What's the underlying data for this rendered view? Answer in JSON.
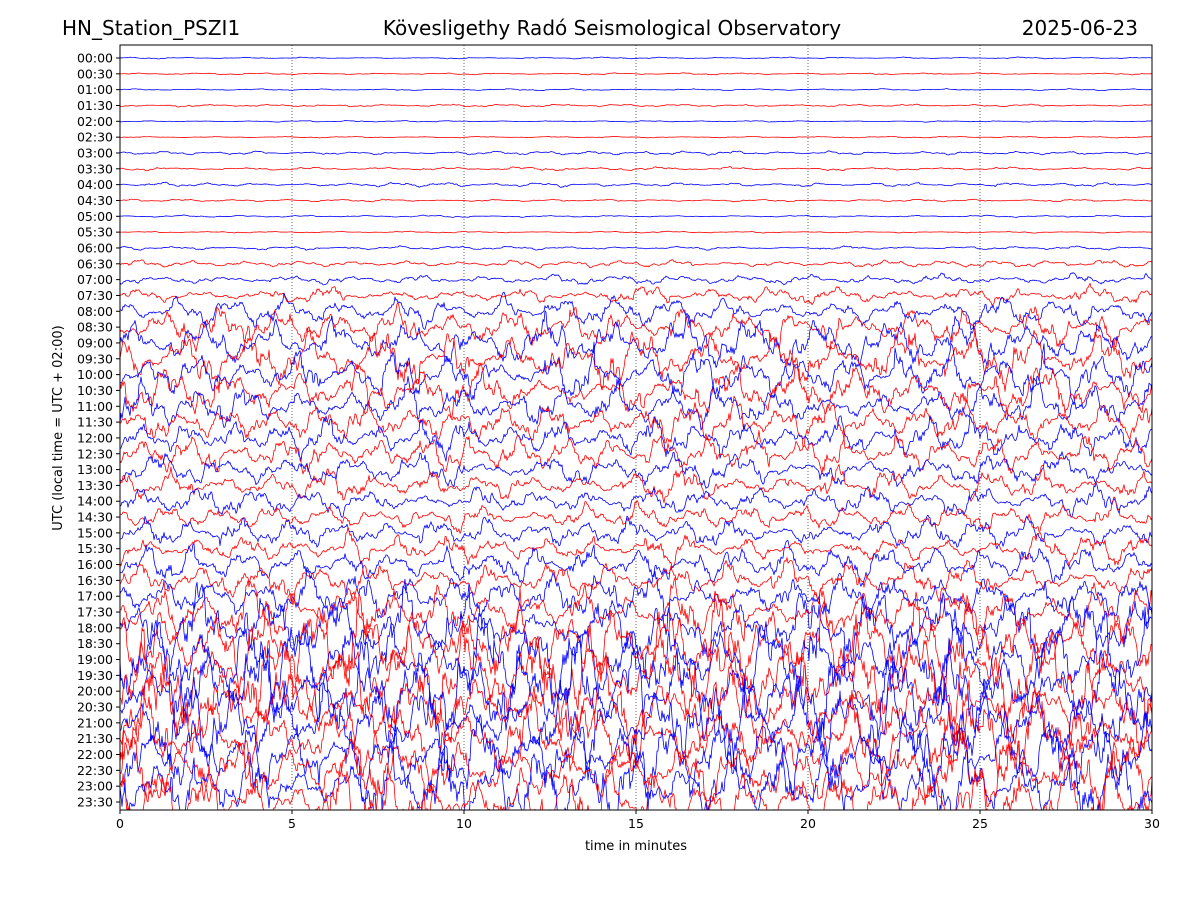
{
  "header": {
    "station": "HN_Station_PSZI1",
    "observatory": "Kövesligethy Radó Seismological Observatory",
    "date": "2025-06-23"
  },
  "chart_data": {
    "type": "line",
    "subtype": "helicorder",
    "xlabel": "time in minutes",
    "ylabel": "UTC (local time = UTC + 02:00)",
    "xlim": [
      0,
      30
    ],
    "x_ticks": [
      0,
      5,
      10,
      15,
      20,
      25,
      30
    ],
    "x_tick_labels": [
      "0",
      "5",
      "10",
      "15",
      "20",
      "25",
      "30"
    ],
    "vertical_gridlines_at": [
      5,
      10,
      15,
      20,
      25
    ],
    "trace_colors": [
      "#0000ff",
      "#ff0000"
    ],
    "rows": [
      {
        "label": "00:00",
        "amplitude": 0.05
      },
      {
        "label": "00:30",
        "amplitude": 0.05
      },
      {
        "label": "01:00",
        "amplitude": 0.05
      },
      {
        "label": "01:30",
        "amplitude": 0.07
      },
      {
        "label": "02:00",
        "amplitude": 0.04
      },
      {
        "label": "02:30",
        "amplitude": 0.04
      },
      {
        "label": "03:00",
        "amplitude": 0.1
      },
      {
        "label": "03:30",
        "amplitude": 0.1
      },
      {
        "label": "04:00",
        "amplitude": 0.12
      },
      {
        "label": "04:30",
        "amplitude": 0.07
      },
      {
        "label": "05:00",
        "amplitude": 0.06
      },
      {
        "label": "05:30",
        "amplitude": 0.05
      },
      {
        "label": "06:00",
        "amplitude": 0.1
      },
      {
        "label": "06:30",
        "amplitude": 0.2
      },
      {
        "label": "07:00",
        "amplitude": 0.3
      },
      {
        "label": "07:30",
        "amplitude": 0.5
      },
      {
        "label": "08:00",
        "amplitude": 0.8
      },
      {
        "label": "08:30",
        "amplitude": 1.1
      },
      {
        "label": "09:00",
        "amplitude": 1.3
      },
      {
        "label": "09:30",
        "amplitude": 1.4
      },
      {
        "label": "10:00",
        "amplitude": 1.4
      },
      {
        "label": "10:30",
        "amplitude": 1.3
      },
      {
        "label": "11:00",
        "amplitude": 1.3
      },
      {
        "label": "11:30",
        "amplitude": 1.1
      },
      {
        "label": "12:00",
        "amplitude": 1.1
      },
      {
        "label": "12:30",
        "amplitude": 1.0
      },
      {
        "label": "13:00",
        "amplitude": 0.9
      },
      {
        "label": "13:30",
        "amplitude": 0.9
      },
      {
        "label": "14:00",
        "amplitude": 0.8
      },
      {
        "label": "14:30",
        "amplitude": 0.8
      },
      {
        "label": "15:00",
        "amplitude": 0.8
      },
      {
        "label": "15:30",
        "amplitude": 0.9
      },
      {
        "label": "16:00",
        "amplitude": 1.0
      },
      {
        "label": "16:30",
        "amplitude": 1.1
      },
      {
        "label": "17:00",
        "amplitude": 1.3
      },
      {
        "label": "17:30",
        "amplitude": 1.6
      },
      {
        "label": "18:00",
        "amplitude": 2.2
      },
      {
        "label": "18:30",
        "amplitude": 2.5
      },
      {
        "label": "19:00",
        "amplitude": 2.6
      },
      {
        "label": "19:30",
        "amplitude": 2.6
      },
      {
        "label": "20:00",
        "amplitude": 2.6
      },
      {
        "label": "20:30",
        "amplitude": 2.5
      },
      {
        "label": "21:00",
        "amplitude": 2.4
      },
      {
        "label": "21:30",
        "amplitude": 2.4
      },
      {
        "label": "22:00",
        "amplitude": 2.3
      },
      {
        "label": "22:30",
        "amplitude": 2.2
      },
      {
        "label": "23:00",
        "amplitude": 2.2
      },
      {
        "label": "23:30",
        "amplitude": 2.2
      }
    ]
  }
}
